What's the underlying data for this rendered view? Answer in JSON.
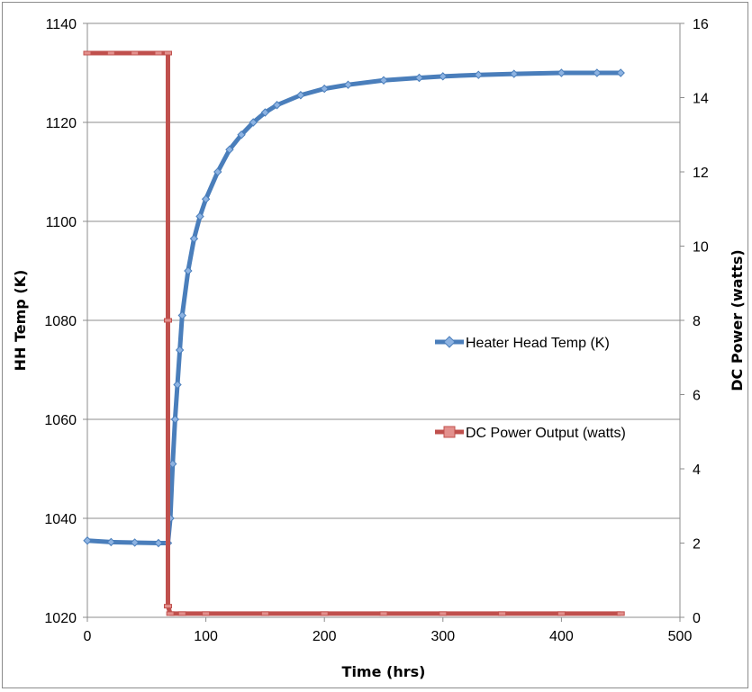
{
  "chart_data": {
    "type": "line",
    "xlabel": "Time (hrs)",
    "ylabel": "HH Temp (K)",
    "y2label": "DC Power (watts)",
    "xlim": [
      0,
      500
    ],
    "ylim": [
      1020,
      1140
    ],
    "y2lim": [
      0,
      16
    ],
    "xticks": [
      0,
      100,
      200,
      300,
      400,
      500
    ],
    "yticks": [
      1020,
      1040,
      1060,
      1080,
      1100,
      1120,
      1140
    ],
    "y2ticks": [
      0,
      2,
      4,
      6,
      8,
      10,
      12,
      14,
      16
    ],
    "grid": "horizontal",
    "legend_position": "right",
    "series": [
      {
        "name": "Heater Head Temp (K)",
        "axis": "left",
        "color": "#4a7ebb",
        "marker": "diamond",
        "x": [
          0,
          20,
          40,
          60,
          68,
          70,
          72,
          74,
          76,
          78,
          80,
          85,
          90,
          95,
          100,
          110,
          120,
          130,
          140,
          150,
          160,
          180,
          200,
          220,
          250,
          280,
          300,
          330,
          360,
          400,
          430,
          450
        ],
        "y": [
          1035.5,
          1035.2,
          1035.1,
          1035.0,
          1035.0,
          1040,
          1051,
          1060,
          1067,
          1074,
          1081,
          1090,
          1096.5,
          1101,
          1104.5,
          1110,
          1114.5,
          1117.5,
          1120,
          1122,
          1123.5,
          1125.5,
          1126.8,
          1127.6,
          1128.5,
          1129.0,
          1129.3,
          1129.6,
          1129.8,
          1130.0,
          1130.0,
          1130.0
        ]
      },
      {
        "name": "DC Power Output (watts)",
        "axis": "right",
        "color": "#c0504d",
        "marker": "square",
        "x": [
          0,
          20,
          40,
          60,
          68,
          68,
          68,
          70,
          80,
          100,
          150,
          200,
          250,
          300,
          350,
          400,
          450
        ],
        "y": [
          15.2,
          15.2,
          15.2,
          15.2,
          15.2,
          8,
          0.3,
          0.1,
          0.1,
          0.1,
          0.1,
          0.1,
          0.1,
          0.1,
          0.1,
          0.1,
          0.1
        ]
      }
    ]
  }
}
